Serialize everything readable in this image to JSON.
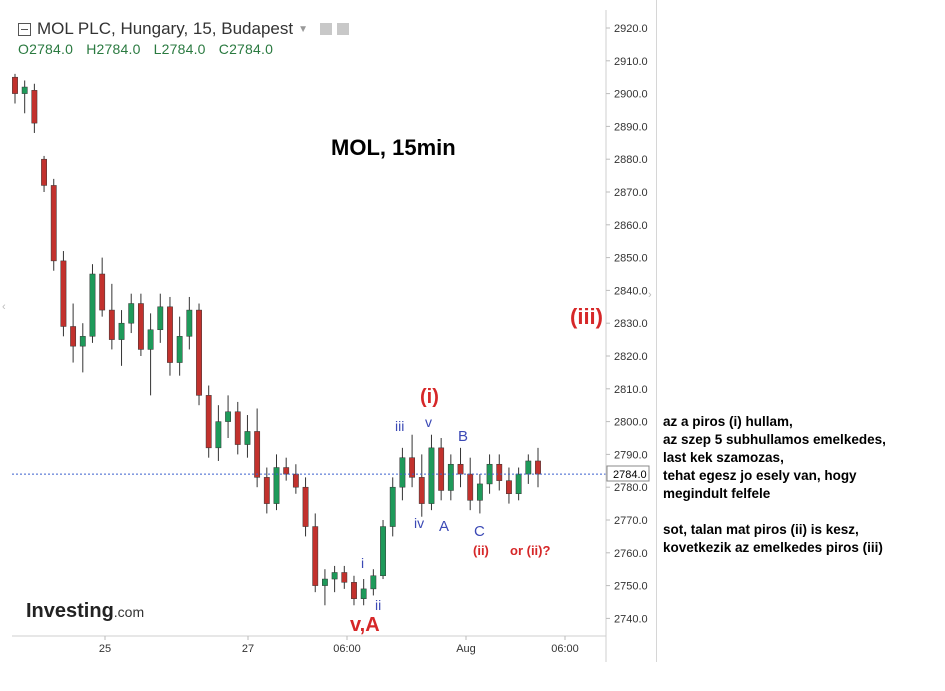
{
  "header": {
    "title": "MOL PLC, Hungary, 15, Budapest",
    "ohlc": {
      "open": "O2784.0",
      "high": "H2784.0",
      "low": "L2784.0",
      "close": "C2784.0"
    }
  },
  "logo": {
    "brand": "Investing",
    "suffix": ".com"
  },
  "chart_data": {
    "type": "candlestick",
    "title": "MOL, 15min",
    "ylim": [
      2735,
      2925
    ],
    "y_ticks": [
      "2920.0",
      "2910.0",
      "2900.0",
      "2890.0",
      "2880.0",
      "2870.0",
      "2860.0",
      "2850.0",
      "2840.0",
      "2830.0",
      "2820.0",
      "2810.0",
      "2800.0",
      "2790.0",
      "2780.0",
      "2770.0",
      "2760.0",
      "2750.0",
      "2740.0"
    ],
    "x_ticks": [
      "25",
      "27",
      "06:00",
      "Aug",
      "06:00"
    ],
    "last_price": 2784.0,
    "last_price_label": "2784.0",
    "colors": {
      "up": "#1e9a5a",
      "down": "#c2312d",
      "last_line": "#3a5fcd",
      "red_label": "#d62728",
      "blue_label": "#3b49b5"
    },
    "candles": [
      [
        2905,
        2906,
        2897,
        2900
      ],
      [
        2900,
        2904,
        2894,
        2902
      ],
      [
        2901,
        2903,
        2888,
        2891
      ],
      [
        2880,
        2881,
        2870,
        2872
      ],
      [
        2872,
        2874,
        2846,
        2849
      ],
      [
        2849,
        2852,
        2826,
        2829
      ],
      [
        2829,
        2836,
        2818,
        2823
      ],
      [
        2823,
        2830,
        2815,
        2826
      ],
      [
        2826,
        2848,
        2824,
        2845
      ],
      [
        2845,
        2850,
        2832,
        2834
      ],
      [
        2834,
        2842,
        2822,
        2825
      ],
      [
        2825,
        2834,
        2817,
        2830
      ],
      [
        2830,
        2839,
        2827,
        2836
      ],
      [
        2836,
        2839,
        2820,
        2822
      ],
      [
        2822,
        2833,
        2808,
        2828
      ],
      [
        2828,
        2839,
        2824,
        2835
      ],
      [
        2835,
        2838,
        2814,
        2818
      ],
      [
        2818,
        2832,
        2814,
        2826
      ],
      [
        2826,
        2838,
        2822,
        2834
      ],
      [
        2834,
        2836,
        2805,
        2808
      ],
      [
        2808,
        2811,
        2789,
        2792
      ],
      [
        2792,
        2805,
        2788,
        2800
      ],
      [
        2800,
        2808,
        2795,
        2803
      ],
      [
        2803,
        2806,
        2790,
        2793
      ],
      [
        2793,
        2802,
        2789,
        2797
      ],
      [
        2797,
        2804,
        2780,
        2783
      ],
      [
        2783,
        2786,
        2772,
        2775
      ],
      [
        2775,
        2790,
        2773,
        2786
      ],
      [
        2786,
        2789,
        2782,
        2784
      ],
      [
        2784,
        2787,
        2778,
        2780
      ],
      [
        2780,
        2783,
        2765,
        2768
      ],
      [
        2768,
        2772,
        2748,
        2750
      ],
      [
        2750,
        2755,
        2744,
        2752
      ],
      [
        2752,
        2756,
        2748,
        2754
      ],
      [
        2754,
        2756,
        2749,
        2751
      ],
      [
        2751,
        2753,
        2744,
        2746
      ],
      [
        2746,
        2752,
        2744,
        2749
      ],
      [
        2749,
        2755,
        2747,
        2753
      ],
      [
        2753,
        2770,
        2752,
        2768
      ],
      [
        2768,
        2783,
        2765,
        2780
      ],
      [
        2780,
        2792,
        2776,
        2789
      ],
      [
        2789,
        2796,
        2780,
        2783
      ],
      [
        2783,
        2790,
        2771,
        2775
      ],
      [
        2775,
        2796,
        2773,
        2792
      ],
      [
        2792,
        2795,
        2776,
        2779
      ],
      [
        2779,
        2790,
        2776,
        2787
      ],
      [
        2787,
        2792,
        2780,
        2784
      ],
      [
        2784,
        2789,
        2773,
        2776
      ],
      [
        2776,
        2784,
        2772,
        2781
      ],
      [
        2781,
        2790,
        2778,
        2787
      ],
      [
        2787,
        2790,
        2779,
        2782
      ],
      [
        2782,
        2786,
        2775,
        2778
      ],
      [
        2778,
        2786,
        2776,
        2784
      ],
      [
        2784,
        2790,
        2781,
        2788
      ],
      [
        2788,
        2792,
        2780,
        2784
      ]
    ],
    "wave_labels": [
      {
        "text": "(i)",
        "x": "2026-07-28T11:00",
        "y": 2807,
        "color": "red"
      },
      {
        "text": "(ii)",
        "x": "2026-07-31T03:00",
        "y": 2760,
        "color": "red"
      },
      {
        "text": "or (ii)?",
        "x": "2026-07-31T06:00",
        "y": 2760,
        "color": "red"
      },
      {
        "text": "(iii)",
        "x": "2026-07-31T10:00",
        "y": 2832,
        "color": "red"
      },
      {
        "text": "v,A",
        "x": "2026-07-28T04:00",
        "y": 2738,
        "color": "red"
      },
      {
        "text": "i",
        "x": "2026-07-28T05:00",
        "y": 2757,
        "color": "blue"
      },
      {
        "text": "ii",
        "x": "2026-07-28T06:00",
        "y": 2743,
        "color": "blue"
      },
      {
        "text": "iii",
        "x": "2026-07-28T10:00",
        "y": 2799,
        "color": "blue"
      },
      {
        "text": "iv",
        "x": "2026-07-28T10:30",
        "y": 2768,
        "color": "blue"
      },
      {
        "text": "v",
        "x": "2026-07-28T11:00",
        "y": 2799,
        "color": "blue"
      },
      {
        "text": "A",
        "x": "2026-07-28T12:00",
        "y": 2767,
        "color": "blue"
      },
      {
        "text": "B",
        "x": "2026-07-31T02:00",
        "y": 2795,
        "color": "blue"
      },
      {
        "text": "C",
        "x": "2026-07-31T03:00",
        "y": 2765,
        "color": "blue"
      }
    ]
  },
  "notes": {
    "para1": [
      "az a piros (i) hullam,",
      "az szep 5 subhullamos emelkedes,",
      "last kek szamozas,",
      "tehat egesz jo esely van, hogy",
      "megindult felfele"
    ],
    "para2": [
      "sot, talan mat piros (ii) is kesz,",
      "kovetkezik az emelkedes piros (iii)"
    ]
  }
}
